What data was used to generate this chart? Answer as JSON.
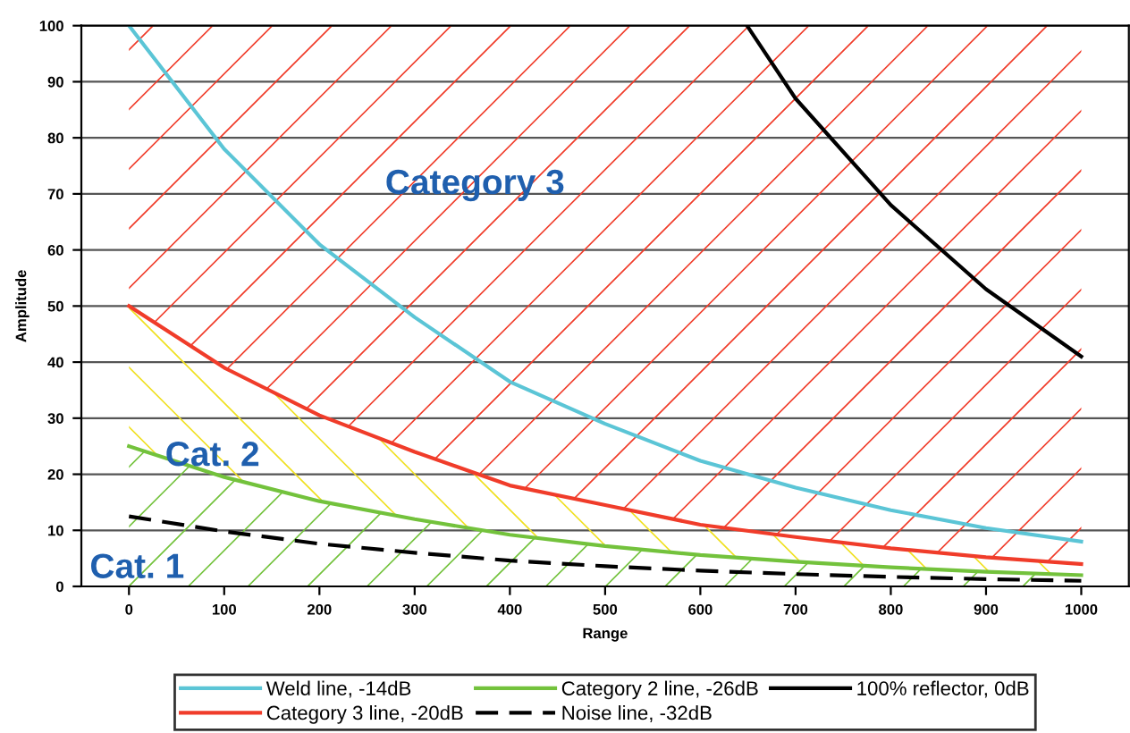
{
  "chart_data": {
    "type": "line",
    "xlabel": "Range",
    "ylabel": "Amplitude",
    "x": [
      0,
      100,
      200,
      300,
      400,
      500,
      600,
      700,
      800,
      900,
      1000
    ],
    "series": [
      {
        "name": "Weld line, -14dB",
        "color": "#5bc5d6",
        "values": [
          100,
          78,
          61,
          48,
          36.5,
          29,
          22.4,
          17.6,
          13.6,
          10.4,
          8
        ]
      },
      {
        "name": "Category 3 line, -20dB",
        "color": "#f03c2a",
        "values": [
          50,
          39,
          30.5,
          24,
          18,
          14.5,
          11,
          8.8,
          6.8,
          5.2,
          4
        ]
      },
      {
        "name": "Category 2 line, -26dB",
        "color": "#73c23c",
        "values": [
          25,
          19.5,
          15.2,
          12,
          9.2,
          7.2,
          5.6,
          4.4,
          3.4,
          2.6,
          2
        ]
      },
      {
        "name": "Noise line, -32dB",
        "color": "#000000",
        "line_style": "dashed",
        "values": [
          12.5,
          9.8,
          7.6,
          6,
          4.6,
          3.6,
          2.8,
          2.2,
          1.7,
          1.3,
          1
        ]
      },
      {
        "name": "100% reflector, 0dB",
        "color": "#000000",
        "x": [
          649,
          700,
          800,
          900,
          1000
        ],
        "values": [
          100,
          87,
          68,
          53,
          41
        ]
      }
    ],
    "annotations": [
      "Category 3",
      "Cat. 2",
      "Cat. 1"
    ],
    "xlim": [
      -50,
      1050
    ],
    "xticks": [
      0,
      100,
      200,
      300,
      400,
      500,
      600,
      700,
      800,
      900,
      1000
    ],
    "ylim": [
      0,
      100
    ],
    "yticks": [
      0,
      10,
      20,
      30,
      40,
      50,
      60,
      70,
      80,
      90,
      100
    ],
    "grid": "y",
    "legend": "bottom",
    "marker": "none"
  }
}
